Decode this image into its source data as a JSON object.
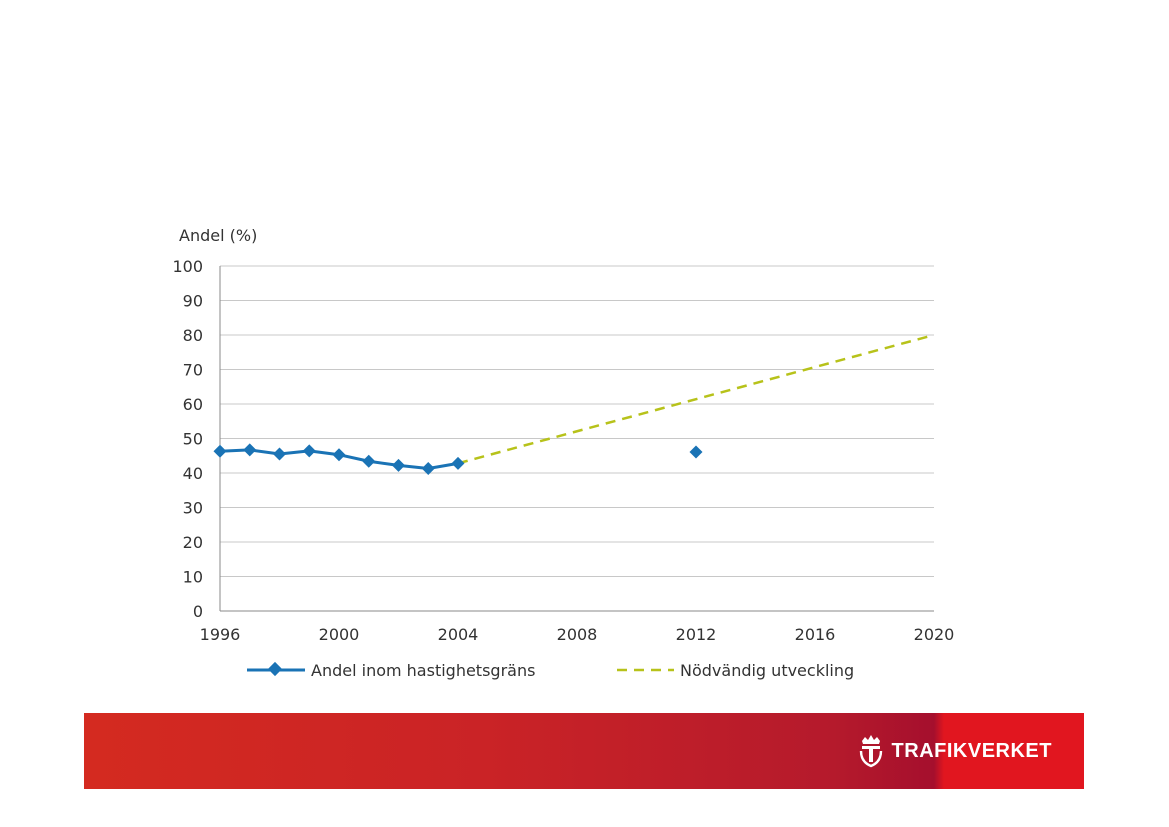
{
  "chart_data": {
    "type": "line",
    "ylabel": "Andel (%)",
    "ylim": [
      0,
      100
    ],
    "yticks": [
      0,
      10,
      20,
      30,
      40,
      50,
      60,
      70,
      80,
      90,
      100
    ],
    "xlim": [
      1996,
      2020
    ],
    "xticks": [
      1996,
      2000,
      2004,
      2008,
      2012,
      2016,
      2020
    ],
    "series": [
      {
        "name": "Andel inom hastighetsgräns",
        "color": "#1a73b5",
        "style": "line-diamond",
        "points": [
          {
            "x": 1996,
            "y": 46.3
          },
          {
            "x": 1997,
            "y": 46.7
          },
          {
            "x": 1998,
            "y": 45.5
          },
          {
            "x": 1999,
            "y": 46.4
          },
          {
            "x": 2000,
            "y": 45.3
          },
          {
            "x": 2001,
            "y": 43.4
          },
          {
            "x": 2002,
            "y": 42.2
          },
          {
            "x": 2003,
            "y": 41.3
          },
          {
            "x": 2004,
            "y": 42.8
          }
        ],
        "isolated_points": [
          {
            "x": 2012,
            "y": 46.1
          }
        ]
      },
      {
        "name": "Nödvändig utveckling",
        "color": "#b7c21a",
        "style": "dashed",
        "points": [
          {
            "x": 2004,
            "y": 42.8
          },
          {
            "x": 2020,
            "y": 80
          }
        ]
      }
    ]
  },
  "footer": {
    "brand_name": "TRAFIKVERKET",
    "brand_icon": "crown-t-icon"
  }
}
